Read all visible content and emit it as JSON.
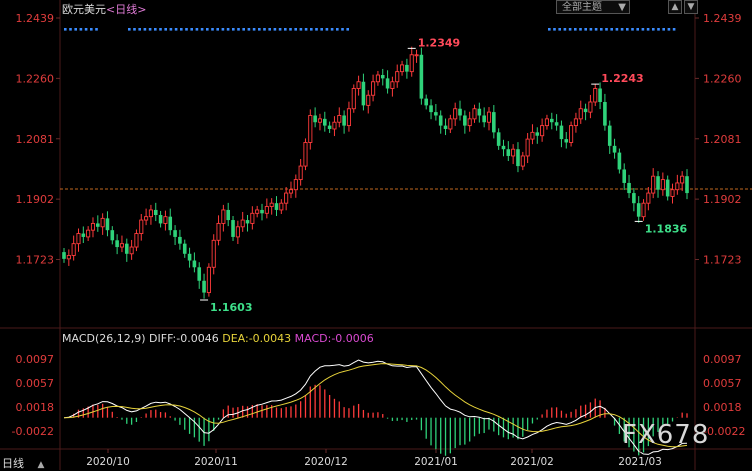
{
  "header": {
    "instrument": "欧元美元",
    "period": "<日线>",
    "theme_select": "全部主题",
    "theme_caret": "▼",
    "buttons": [
      "▲",
      "▼"
    ]
  },
  "macd_header": {
    "title": "MACD(26,12,9)",
    "diff": "DIFF:-0.0046",
    "dea": "DEA:-0.0043",
    "macd": "MACD:-0.0006"
  },
  "corner_label": "日线",
  "watermark": "FX678",
  "colors": {
    "up": "#ff3b3b",
    "down": "#2fd27a",
    "diff": "#ffffff",
    "dea": "#e6d23a",
    "axis_text": "#e03c3c",
    "ref_line": "#ff8a2a"
  },
  "chart_data": [
    {
      "type": "candlestick",
      "ylim": [
        1.1603,
        1.2439
      ],
      "y_ticks": [
        "1.2439",
        "1.2260",
        "1.2081",
        "1.1902",
        "1.1723"
      ],
      "x_ticks": [
        "2020/10",
        "2020/11",
        "2020/12",
        "2021/01",
        "2021/02",
        "2021/03"
      ],
      "reference_line": 1.1932,
      "annotations": [
        {
          "label": "1.2349",
          "value": 1.2349,
          "kind": "high"
        },
        {
          "label": "1.2243",
          "value": 1.2243,
          "kind": "high"
        },
        {
          "label": "1.1603",
          "value": 1.1603,
          "kind": "low"
        },
        {
          "label": "1.1836",
          "value": 1.1836,
          "kind": "low"
        }
      ],
      "close": [
        1.1725,
        1.1735,
        1.177,
        1.18,
        1.179,
        1.181,
        1.183,
        1.182,
        1.1845,
        1.181,
        1.178,
        1.176,
        1.177,
        1.174,
        1.176,
        1.18,
        1.184,
        1.185,
        1.187,
        1.1855,
        1.183,
        1.185,
        1.181,
        1.179,
        1.177,
        1.174,
        1.172,
        1.17,
        1.166,
        1.1625,
        1.17,
        1.178,
        1.183,
        1.187,
        1.184,
        1.179,
        1.182,
        1.184,
        1.183,
        1.186,
        1.187,
        1.186,
        1.188,
        1.189,
        1.187,
        1.189,
        1.192,
        1.193,
        1.196,
        1.2,
        1.207,
        1.215,
        1.213,
        1.214,
        1.212,
        1.211,
        1.213,
        1.215,
        1.212,
        1.217,
        1.223,
        1.225,
        1.218,
        1.221,
        1.225,
        1.227,
        1.226,
        1.223,
        1.225,
        1.228,
        1.23,
        1.228,
        1.233,
        1.233,
        1.22,
        1.218,
        1.216,
        1.215,
        1.212,
        1.211,
        1.214,
        1.217,
        1.215,
        1.212,
        1.214,
        1.217,
        1.215,
        1.213,
        1.216,
        1.21,
        1.206,
        1.205,
        1.203,
        1.205,
        1.2,
        1.203,
        1.208,
        1.21,
        1.209,
        1.212,
        1.214,
        1.213,
        1.212,
        1.208,
        1.207,
        1.212,
        1.214,
        1.217,
        1.216,
        1.219,
        1.223,
        1.219,
        1.212,
        1.206,
        1.204,
        1.199,
        1.195,
        1.192,
        1.189,
        1.185,
        1.189,
        1.192,
        1.197,
        1.193,
        1.196,
        1.191,
        1.193,
        1.195,
        1.197,
        1.192
      ]
    },
    {
      "type": "macd",
      "params": [
        26,
        12,
        9
      ],
      "ylim": [
        -0.005,
        0.0115
      ],
      "y_ticks": [
        "0.0097",
        "0.0057",
        "0.0018",
        "-0.0022"
      ],
      "diff": -0.0046,
      "dea": -0.0043,
      "macd": -0.0006
    }
  ]
}
